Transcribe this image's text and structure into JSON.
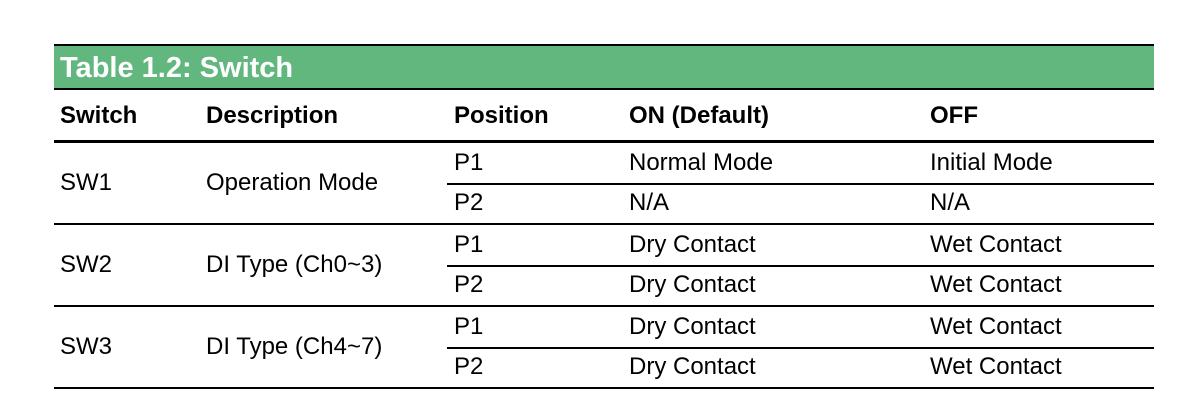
{
  "title": "Table 1.2: Switch",
  "headers": [
    "Switch",
    "Description",
    "Position",
    "ON (Default)",
    "OFF"
  ],
  "groups": [
    {
      "switch": "SW1",
      "description": "Operation Mode",
      "rows": [
        {
          "position": "P1",
          "on": "Normal Mode",
          "off": "Initial Mode"
        },
        {
          "position": "P2",
          "on": "N/A",
          "off": "N/A"
        }
      ]
    },
    {
      "switch": "SW2",
      "description": "DI Type (Ch0~3)",
      "rows": [
        {
          "position": "P1",
          "on": "Dry Contact",
          "off": "Wet Contact"
        },
        {
          "position": "P2",
          "on": "Dry Contact",
          "off": "Wet Contact"
        }
      ]
    },
    {
      "switch": "SW3",
      "description": "DI Type (Ch4~7)",
      "rows": [
        {
          "position": "P1",
          "on": "Dry Contact",
          "off": "Wet Contact"
        },
        {
          "position": "P2",
          "on": "Dry Contact",
          "off": "Wet Contact"
        }
      ]
    }
  ],
  "colors": {
    "title_bg": "#62b77f"
  }
}
